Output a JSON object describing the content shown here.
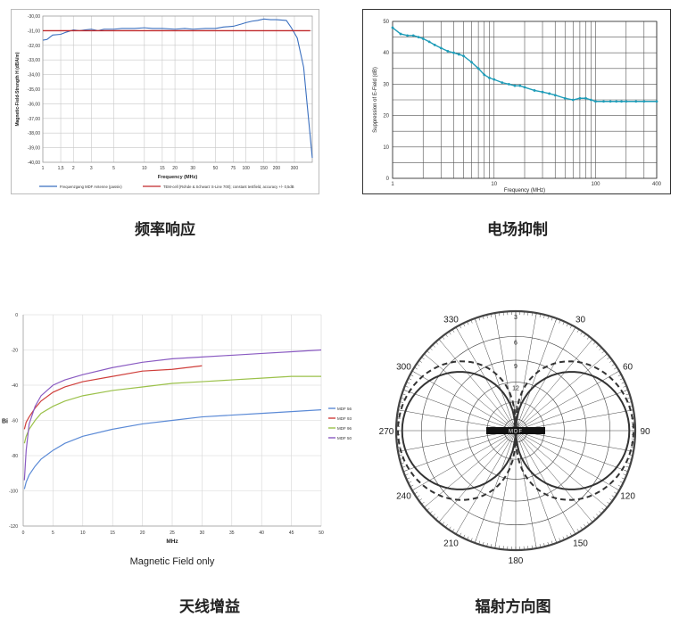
{
  "captions": {
    "freq_response": "频率响应",
    "efield_suppression": "电场抑制",
    "antenna_gain": "天线增益",
    "radiation_pattern": "辐射方向图"
  },
  "chart_data": [
    {
      "type": "line",
      "title": "",
      "xlabel": "Frequency (MHz)",
      "ylabel": "Magnetic-Field-Strength H (dBA/m)",
      "x_ticks": [
        "1",
        "1,5",
        "2",
        "3",
        "5",
        "10",
        "15",
        "20",
        "30",
        "50",
        "75",
        "100",
        "150",
        "200",
        "300"
      ],
      "x_tick_values": [
        1,
        1.5,
        2,
        3,
        5,
        10,
        15,
        20,
        30,
        50,
        75,
        100,
        150,
        200,
        300
      ],
      "y_ticks": [
        "-30,00",
        "-31,00",
        "-32,00",
        "-33,00",
        "-34,00",
        "-35,00",
        "-36,00",
        "-37,00",
        "-38,00",
        "-39,00",
        "-40,00"
      ],
      "ylim": [
        -40,
        -30
      ],
      "xlim": [
        1,
        450
      ],
      "x_scale": "log",
      "grid": true,
      "legend_position": "bottom",
      "series": [
        {
          "name": "Frequenzgang MDF Antenne (passiv)",
          "color": "#3a6fbf",
          "x": [
            1,
            1.1,
            1.25,
            1.5,
            1.7,
            2,
            2.3,
            2.6,
            3,
            3.5,
            4,
            5,
            6,
            8,
            10,
            12,
            15,
            20,
            25,
            30,
            40,
            50,
            60,
            75,
            90,
            100,
            115,
            130,
            150,
            175,
            200,
            250,
            280,
            320,
            370,
            400,
            450
          ],
          "y": [
            -31.65,
            -31.6,
            -31.3,
            -31.25,
            -31.1,
            -30.95,
            -31.0,
            -30.95,
            -30.9,
            -31.0,
            -30.9,
            -30.9,
            -30.85,
            -30.85,
            -30.8,
            -30.85,
            -30.85,
            -30.9,
            -30.85,
            -30.9,
            -30.85,
            -30.85,
            -30.75,
            -30.7,
            -30.55,
            -30.45,
            -30.35,
            -30.3,
            -30.2,
            -30.25,
            -30.25,
            -30.3,
            -30.8,
            -31.5,
            -33.5,
            -36.0,
            -39.7
          ]
        },
        {
          "name": "TEM-cell (Rohde & Schwarz S-Line 700); constant testfield, accuracy +/- 0,5dB",
          "color": "#c0282a",
          "x": [
            1,
            430
          ],
          "y": [
            -31.0,
            -31.0
          ]
        }
      ]
    },
    {
      "type": "line",
      "title": "",
      "xlabel": "Frequency (MHz)",
      "ylabel": "Suppression of E-Field (dB)",
      "x_ticks": [
        "1",
        "10",
        "100",
        "400"
      ],
      "x_tick_values": [
        1,
        10,
        100,
        400
      ],
      "y_ticks": [
        "0",
        "10",
        "20",
        "30",
        "40",
        "50"
      ],
      "ylim": [
        0,
        50
      ],
      "xlim": [
        1,
        400
      ],
      "x_scale": "log",
      "grid": true,
      "series": [
        {
          "name": "",
          "color": "#1e9cb8",
          "x": [
            1,
            1.2,
            1.4,
            1.6,
            1.8,
            2,
            2.3,
            2.6,
            3,
            3.5,
            4,
            4.5,
            5,
            6,
            7,
            8,
            9,
            10,
            12,
            14,
            16,
            18,
            20,
            25,
            30,
            35,
            40,
            50,
            60,
            70,
            80,
            90,
            100,
            120,
            140,
            160,
            180,
            200,
            250,
            300,
            400
          ],
          "y": [
            48,
            46,
            45.5,
            45.5,
            45,
            44.5,
            43.5,
            42.5,
            41.5,
            40.5,
            40,
            39.5,
            39,
            37,
            35,
            33,
            32,
            31.5,
            30.5,
            30,
            29.5,
            29.5,
            29,
            28,
            27.5,
            27,
            26.5,
            25.5,
            25,
            25.5,
            25.5,
            25,
            24.5,
            24.5,
            24.5,
            24.5,
            24.5,
            24.5,
            24.5,
            24.5,
            24.5
          ]
        }
      ]
    },
    {
      "type": "line",
      "title": "",
      "subtitle": "Magnetic Field only",
      "xlabel": "MHz",
      "ylabel": "Bi",
      "x_ticks": [
        "0",
        "5",
        "10",
        "15",
        "20",
        "25",
        "30",
        "35",
        "40",
        "45",
        "50"
      ],
      "y_ticks": [
        "0",
        "-20",
        "-40",
        "-60",
        "-80",
        "-100",
        "-120"
      ],
      "ylim": [
        -120,
        0
      ],
      "xlim": [
        0,
        50
      ],
      "grid": true,
      "legend_position": "right",
      "series": [
        {
          "name": "MDF 56",
          "color": "#5b8ad6",
          "x": [
            0.2,
            0.5,
            1,
            2,
            3,
            5,
            7,
            10,
            15,
            20,
            25,
            30,
            35,
            40,
            45,
            50
          ],
          "y": [
            -99,
            -95,
            -91,
            -86,
            -82,
            -77,
            -73,
            -69,
            -65,
            -62,
            -60,
            -58,
            -57,
            -56,
            -55,
            -54
          ]
        },
        {
          "name": "MDF 93",
          "color": "#cf3e3a",
          "x": [
            0.2,
            0.5,
            1,
            2,
            3,
            5,
            7,
            10,
            15,
            20,
            25,
            30
          ],
          "y": [
            -65,
            -61,
            -58,
            -53,
            -49,
            -44,
            -41,
            -38,
            -35,
            -32,
            -31,
            -29
          ]
        },
        {
          "name": "MDF 96",
          "color": "#9bc14a",
          "x": [
            0.2,
            0.5,
            1,
            2,
            3,
            5,
            7,
            10,
            15,
            20,
            25,
            30,
            35,
            40,
            45,
            50
          ],
          "y": [
            -73,
            -69,
            -65,
            -60,
            -56,
            -52,
            -49,
            -46,
            -43,
            -41,
            -39,
            -38,
            -37,
            -36,
            -35,
            -35
          ]
        },
        {
          "name": "MDF 50",
          "color": "#8a5bc2",
          "x": [
            0.2,
            0.5,
            1,
            2,
            3,
            5,
            7,
            10,
            15,
            20,
            25,
            30,
            35,
            40,
            45,
            50
          ],
          "y": [
            -94,
            -77,
            -62,
            -52,
            -46,
            -40,
            -37,
            -34,
            -30,
            -27,
            -25,
            -24,
            -23,
            -22,
            -21,
            -20
          ]
        }
      ]
    },
    {
      "type": "polar",
      "title": "",
      "angle_labels": [
        "330",
        "30",
        "300",
        "60",
        "270",
        "90",
        "240",
        "120",
        "210",
        "150",
        "180"
      ],
      "angle_values": [
        330,
        30,
        300,
        60,
        270,
        90,
        240,
        120,
        210,
        150,
        180
      ],
      "radial_labels": [
        "3",
        "6",
        "9",
        "12",
        "15",
        "18"
      ],
      "center_label": "MDF",
      "series": [
        {
          "name": "",
          "style": "solid",
          "shape": "figure-eight"
        },
        {
          "name": "",
          "style": "dashed",
          "shape": "figure-eight-wide"
        }
      ]
    }
  ]
}
